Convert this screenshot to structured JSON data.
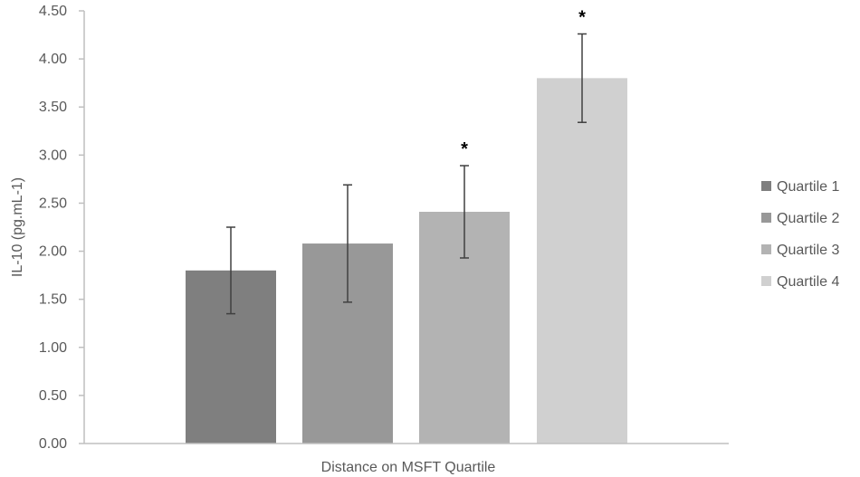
{
  "chart_data": {
    "type": "bar",
    "title": "",
    "xlabel": "Distance on MSFT Quartile",
    "ylabel": "IL-10 (pg.mL-1)",
    "ylim": [
      0,
      4.5
    ],
    "yticks": [
      "0.00",
      "0.50",
      "1.00",
      "1.50",
      "2.00",
      "2.50",
      "3.00",
      "3.50",
      "4.00",
      "4.50"
    ],
    "grid": false,
    "legend_position": "right",
    "series": [
      {
        "name": "Quartile 1",
        "value": 1.8,
        "error": 0.45,
        "significant": false,
        "annotation": "",
        "color": "#7f7f7f"
      },
      {
        "name": "Quartile 2",
        "value": 2.08,
        "error": 0.61,
        "significant": false,
        "annotation": "",
        "color": "#989898"
      },
      {
        "name": "Quartile 3",
        "value": 2.41,
        "error": 0.48,
        "significant": true,
        "annotation": "*",
        "color": "#b3b3b3"
      },
      {
        "name": "Quartile 4",
        "value": 3.8,
        "error": 0.46,
        "significant": true,
        "annotation": "*",
        "color": "#d0d0d0"
      }
    ]
  }
}
